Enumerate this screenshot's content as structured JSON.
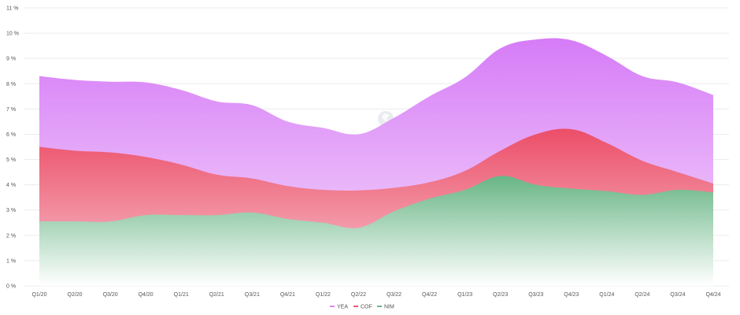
{
  "chart_data": {
    "type": "area",
    "title": "",
    "xlabel": "",
    "ylabel": "",
    "categories": [
      "Q1/20",
      "Q2/20",
      "Q3/20",
      "Q4/20",
      "Q1/21",
      "Q2/21",
      "Q3/21",
      "Q4/21",
      "Q1/22",
      "Q2/22",
      "Q3/22",
      "Q4/22",
      "Q1/23",
      "Q2/23",
      "Q3/23",
      "Q4/23",
      "Q1/24",
      "Q2/24",
      "Q3/24",
      "Q4/24"
    ],
    "ylim": [
      0,
      11
    ],
    "y_ticks": [
      0,
      1,
      2,
      3,
      4,
      5,
      6,
      7,
      8,
      9,
      10,
      11
    ],
    "y_tick_suffix": " %",
    "grid": true,
    "legend_position": "bottom-center",
    "series": [
      {
        "name": "YEA",
        "color": "#df85f8",
        "values": [
          8.3,
          8.15,
          8.08,
          8.05,
          7.75,
          7.3,
          7.15,
          6.5,
          6.25,
          6.0,
          6.65,
          7.5,
          8.25,
          9.4,
          9.75,
          9.72,
          9.1,
          8.3,
          8.05,
          7.55
        ]
      },
      {
        "name": "COF",
        "color": "#ee5a74",
        "values": [
          5.5,
          5.35,
          5.28,
          5.1,
          4.8,
          4.4,
          4.25,
          3.95,
          3.8,
          3.78,
          3.88,
          4.1,
          4.55,
          5.35,
          6.0,
          6.2,
          5.65,
          4.95,
          4.5,
          4.05
        ]
      },
      {
        "name": "NIM",
        "color": "#6bb58a",
        "values": [
          2.55,
          2.55,
          2.55,
          2.8,
          2.8,
          2.8,
          2.9,
          2.65,
          2.5,
          2.3,
          2.95,
          3.45,
          3.8,
          4.35,
          4.0,
          3.85,
          3.75,
          3.6,
          3.8,
          3.7
        ]
      }
    ]
  }
}
